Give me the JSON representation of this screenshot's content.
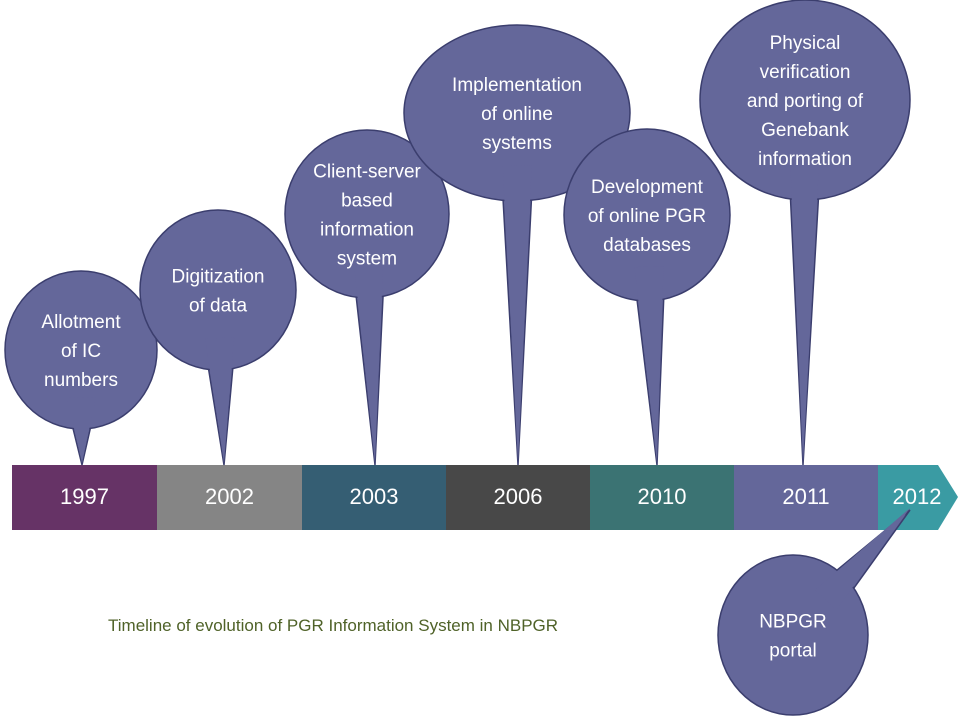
{
  "timeline": {
    "segments": [
      {
        "year": "1997",
        "color": "#663366"
      },
      {
        "year": "2002",
        "color": "#858585"
      },
      {
        "year": "2003",
        "color": "#355e73"
      },
      {
        "year": "2006",
        "color": "#484848"
      },
      {
        "year": "2010",
        "color": "#3b7373"
      },
      {
        "year": "2011",
        "color": "#64679a"
      },
      {
        "year": "2012",
        "color": "#3a9ba3"
      }
    ],
    "bubble_color": "#64679a",
    "bubble_stroke": "#3b3e6e",
    "events": [
      {
        "lines": [
          "Allotment",
          "of IC",
          "numbers"
        ],
        "year": "1997"
      },
      {
        "lines": [
          "Digitization",
          "of data"
        ],
        "year": "2002"
      },
      {
        "lines": [
          "Client-server",
          "based",
          "information",
          "system"
        ],
        "year": "2003"
      },
      {
        "lines": [
          "Implementation",
          "of online",
          "systems"
        ],
        "year": "2006"
      },
      {
        "lines": [
          "Development",
          "of online PGR",
          "databases"
        ],
        "year": "2010"
      },
      {
        "lines": [
          "Physical",
          "verification",
          "and porting of",
          "Genebank",
          "information"
        ],
        "year": "2011"
      },
      {
        "lines": [
          "NBPGR",
          "portal"
        ],
        "year": "2012"
      }
    ]
  },
  "caption": "Timeline of evolution of PGR Information System in NBPGR",
  "caption_color": "#4f6228"
}
